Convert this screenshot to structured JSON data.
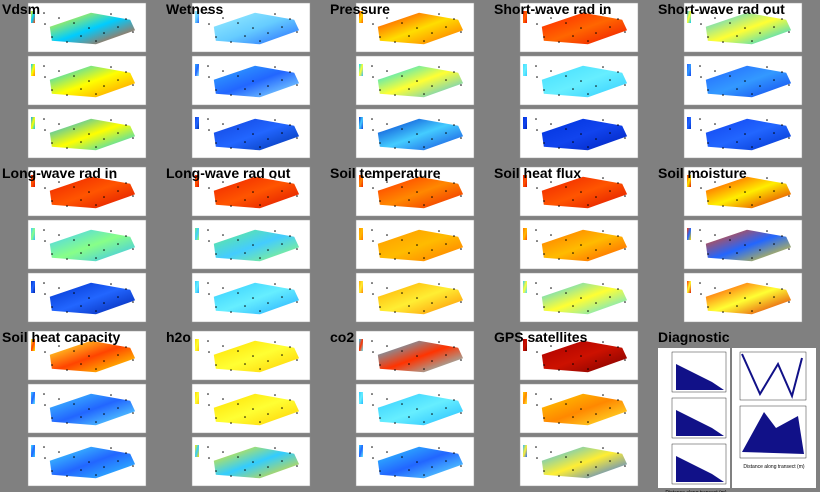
{
  "panels": [
    {
      "title": "Vdsm"
    },
    {
      "title": "Wetness"
    },
    {
      "title": "Pressure"
    },
    {
      "title": "Short-wave rad in"
    },
    {
      "title": "Short-wave rad out"
    },
    {
      "title": "Long-wave rad in"
    },
    {
      "title": "Long-wave rad out"
    },
    {
      "title": "Soil temperature"
    },
    {
      "title": "Soil heat flux"
    },
    {
      "title": "Soil moisture"
    },
    {
      "title": "Soil heat capacity"
    },
    {
      "title": "h2o"
    },
    {
      "title": "co2"
    },
    {
      "title": "GPS satellites"
    },
    {
      "title": "Diagnostic",
      "axis_labels": [
        "Distance along transect (m)",
        "Distance along transect (m)"
      ]
    }
  ]
}
